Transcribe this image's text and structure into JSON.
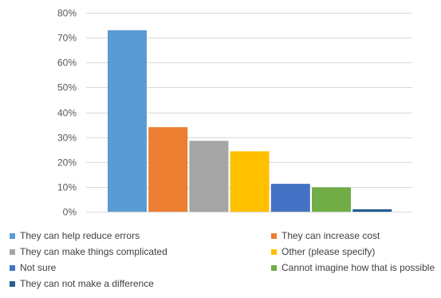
{
  "chart_data": {
    "type": "bar",
    "title": "",
    "xlabel": "",
    "ylabel": "",
    "ylim": [
      0,
      0.8
    ],
    "y_ticks": [
      "0%",
      "10%",
      "20%",
      "30%",
      "40%",
      "50%",
      "60%",
      "70%",
      "80%"
    ],
    "grid": true,
    "legend_position": "bottom",
    "series": [
      {
        "name": "They can help reduce errors",
        "value": 0.73,
        "color": "#5B9BD5"
      },
      {
        "name": "They can increase cost",
        "value": 0.34,
        "color": "#ED7D31"
      },
      {
        "name": "They can make things complicated",
        "value": 0.285,
        "color": "#A5A5A5"
      },
      {
        "name": "Other (please specify)",
        "value": 0.243,
        "color": "#FFC000"
      },
      {
        "name": "Not sure",
        "value": 0.112,
        "color": "#4472C4"
      },
      {
        "name": "Cannot imagine how that is possible",
        "value": 0.098,
        "color": "#70AD47"
      },
      {
        "name": "They can not make a difference",
        "value": 0.01,
        "color": "#255E91"
      }
    ]
  }
}
